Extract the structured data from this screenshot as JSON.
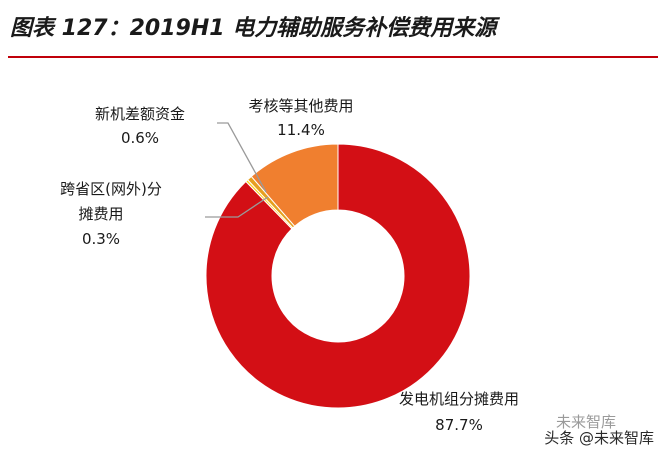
{
  "chart_data": {
    "type": "pie",
    "title": "图表 127：2019H1 电力辅助服务补偿费用来源",
    "donut": true,
    "slices": [
      {
        "label": "发电机组分摊费用",
        "value": 87.7,
        "value_label": "87.7%",
        "color": "#d30f15"
      },
      {
        "label": "跨省区(网外)分摊费用",
        "value": 0.3,
        "value_label": "0.3%",
        "color": "#ffd11a"
      },
      {
        "label": "新机差额资金",
        "value": 0.6,
        "value_label": "0.6%",
        "color": "#e6a020"
      },
      {
        "label": "考核等其他费用",
        "value": 11.4,
        "value_label": "11.4%",
        "color": "#f07f2f"
      }
    ]
  },
  "watermark": {
    "prefix": "头条",
    "handle": "@未来智库",
    "logo_text": "未来智库"
  }
}
